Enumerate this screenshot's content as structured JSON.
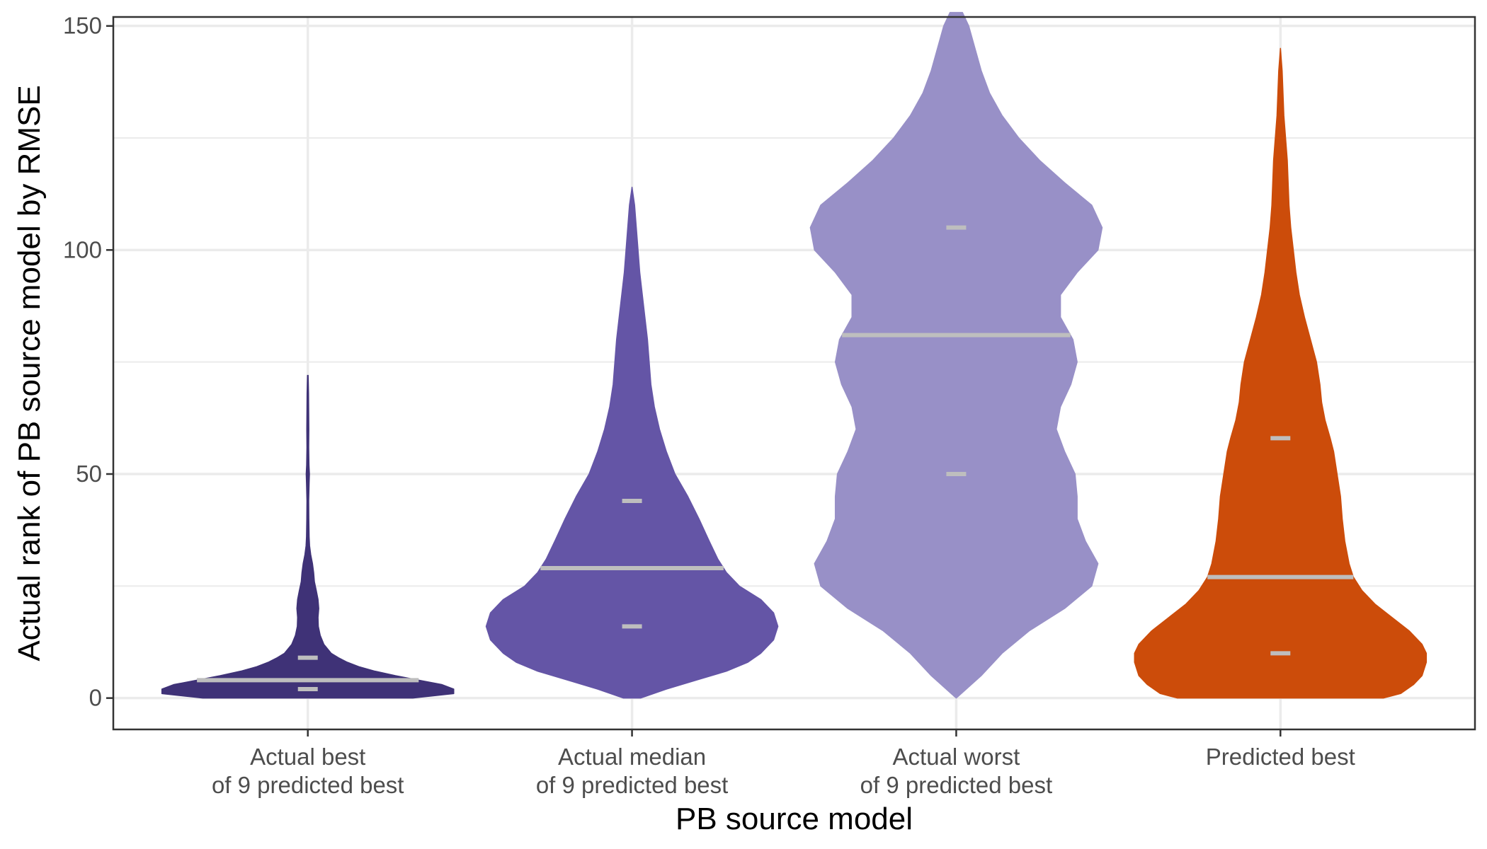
{
  "chart_data": {
    "type": "violin",
    "xlabel": "PB source model",
    "ylabel": "Actual rank of PB source model by RMSE",
    "ylim": [
      -7,
      152
    ],
    "yticks": [
      0,
      50,
      100,
      150
    ],
    "y_minor_ticks": [
      25,
      75,
      125
    ],
    "grid": true,
    "categories": [
      {
        "line1": "Actual best",
        "line2": "of 9 predicted best"
      },
      {
        "line1": "Actual median",
        "line2": "of 9 predicted best"
      },
      {
        "line1": "Actual worst",
        "line2": "of 9 predicted best"
      },
      {
        "line1": "Predicted best",
        "line2": ""
      }
    ],
    "series": [
      {
        "color": "#3f3277",
        "quantiles": [
          2,
          4,
          9
        ],
        "density": [
          [
            0,
            0.72
          ],
          [
            1,
            1.0
          ],
          [
            2,
            1.0
          ],
          [
            3,
            0.92
          ],
          [
            4,
            0.76
          ],
          [
            5,
            0.6
          ],
          [
            6,
            0.46
          ],
          [
            7,
            0.35
          ],
          [
            8,
            0.27
          ],
          [
            9,
            0.21
          ],
          [
            10,
            0.16
          ],
          [
            12,
            0.11
          ],
          [
            14,
            0.085
          ],
          [
            16,
            0.072
          ],
          [
            18,
            0.07
          ],
          [
            20,
            0.075
          ],
          [
            22,
            0.07
          ],
          [
            24,
            0.058
          ],
          [
            26,
            0.045
          ],
          [
            28,
            0.04
          ],
          [
            30,
            0.032
          ],
          [
            32,
            0.02
          ],
          [
            34,
            0.012
          ],
          [
            36,
            0.009
          ],
          [
            40,
            0.007
          ],
          [
            44,
            0.006
          ],
          [
            48,
            0.009
          ],
          [
            50,
            0.011
          ],
          [
            52,
            0.008
          ],
          [
            56,
            0.006
          ],
          [
            60,
            0.007
          ],
          [
            64,
            0.006
          ],
          [
            68,
            0.005
          ],
          [
            72,
            0.002
          ]
        ]
      },
      {
        "color": "#6455a6",
        "quantiles": [
          16,
          29,
          44
        ],
        "density": [
          [
            0,
            0.01
          ],
          [
            2,
            0.04
          ],
          [
            4,
            0.075
          ],
          [
            6,
            0.11
          ],
          [
            8,
            0.135
          ],
          [
            10,
            0.15
          ],
          [
            13,
            0.165
          ],
          [
            16,
            0.17
          ],
          [
            19,
            0.165
          ],
          [
            22,
            0.15
          ],
          [
            25,
            0.125
          ],
          [
            28,
            0.11
          ],
          [
            31,
            0.1
          ],
          [
            35,
            0.09
          ],
          [
            40,
            0.078
          ],
          [
            45,
            0.065
          ],
          [
            50,
            0.05
          ],
          [
            55,
            0.04
          ],
          [
            60,
            0.032
          ],
          [
            65,
            0.026
          ],
          [
            70,
            0.022
          ],
          [
            75,
            0.02
          ],
          [
            80,
            0.018
          ],
          [
            85,
            0.015
          ],
          [
            90,
            0.012
          ],
          [
            95,
            0.009
          ],
          [
            100,
            0.007
          ],
          [
            105,
            0.005
          ],
          [
            110,
            0.003
          ],
          [
            114,
            0.0
          ]
        ]
      },
      {
        "color": "#9890c7",
        "quantiles": [
          50,
          81,
          105
        ],
        "density": [
          [
            0,
            0.0
          ],
          [
            5,
            0.012
          ],
          [
            10,
            0.022
          ],
          [
            15,
            0.035
          ],
          [
            20,
            0.052
          ],
          [
            25,
            0.065
          ],
          [
            30,
            0.068
          ],
          [
            35,
            0.062
          ],
          [
            40,
            0.058
          ],
          [
            45,
            0.058
          ],
          [
            50,
            0.057
          ],
          [
            55,
            0.052
          ],
          [
            60,
            0.048
          ],
          [
            65,
            0.05
          ],
          [
            70,
            0.055
          ],
          [
            75,
            0.058
          ],
          [
            80,
            0.056
          ],
          [
            85,
            0.05
          ],
          [
            90,
            0.05
          ],
          [
            95,
            0.058
          ],
          [
            100,
            0.068
          ],
          [
            105,
            0.07
          ],
          [
            110,
            0.065
          ],
          [
            115,
            0.052
          ],
          [
            120,
            0.04
          ],
          [
            125,
            0.03
          ],
          [
            130,
            0.022
          ],
          [
            135,
            0.016
          ],
          [
            140,
            0.012
          ],
          [
            145,
            0.009
          ],
          [
            150,
            0.006
          ],
          [
            153,
            0.003
          ]
        ]
      },
      {
        "color": "#cc4c0a",
        "quantiles": [
          10,
          27,
          58
        ],
        "density": [
          [
            0,
            0.12
          ],
          [
            1,
            0.14
          ],
          [
            3,
            0.155
          ],
          [
            5,
            0.165
          ],
          [
            8,
            0.17
          ],
          [
            10,
            0.17
          ],
          [
            12,
            0.165
          ],
          [
            15,
            0.15
          ],
          [
            18,
            0.13
          ],
          [
            21,
            0.11
          ],
          [
            24,
            0.095
          ],
          [
            27,
            0.085
          ],
          [
            30,
            0.08
          ],
          [
            35,
            0.075
          ],
          [
            40,
            0.072
          ],
          [
            45,
            0.07
          ],
          [
            50,
            0.066
          ],
          [
            55,
            0.062
          ],
          [
            58,
            0.058
          ],
          [
            62,
            0.052
          ],
          [
            66,
            0.048
          ],
          [
            70,
            0.046
          ],
          [
            75,
            0.042
          ],
          [
            80,
            0.035
          ],
          [
            85,
            0.028
          ],
          [
            90,
            0.022
          ],
          [
            95,
            0.018
          ],
          [
            100,
            0.015
          ],
          [
            105,
            0.012
          ],
          [
            110,
            0.01
          ],
          [
            115,
            0.009
          ],
          [
            120,
            0.008
          ],
          [
            125,
            0.006
          ],
          [
            130,
            0.004
          ],
          [
            135,
            0.003
          ],
          [
            140,
            0.002
          ],
          [
            145,
            0.0
          ]
        ]
      }
    ],
    "quantile_color": "#bebebe",
    "grid_color": "#ebebeb",
    "panel_border_color": "#333333"
  }
}
